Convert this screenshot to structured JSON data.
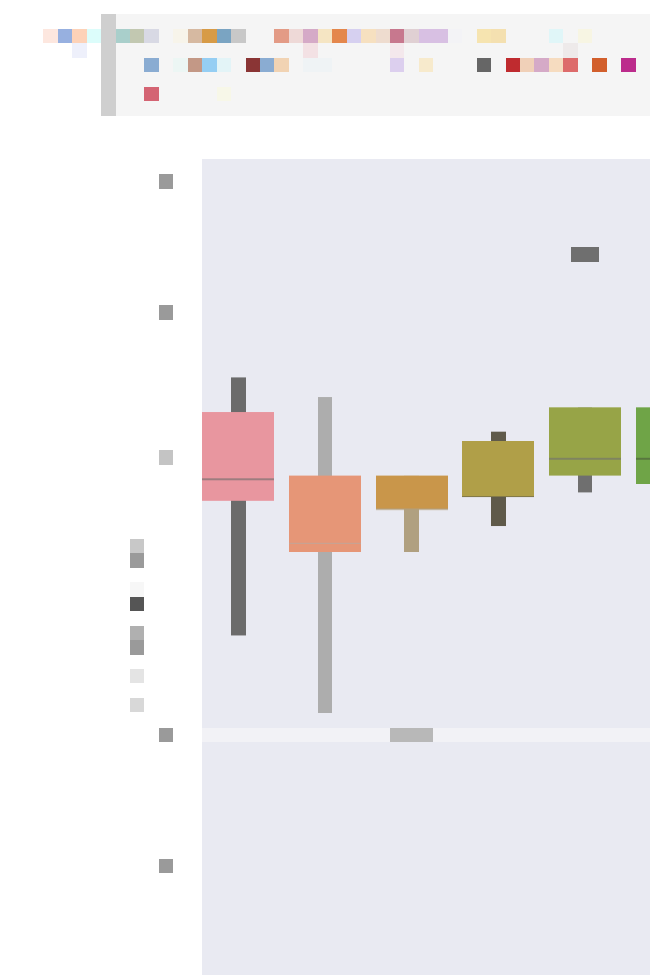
{
  "swatches": {
    "outside": [
      "#fde7df",
      "#97b0e0",
      "#fdd2b8",
      "#dcfdfb",
      "#eef0fb"
    ],
    "row1": [
      "#a9cfcb",
      "#c2c8b1",
      "#d8d9e4",
      "#f7f4ea",
      "#d6b9a1",
      "#d79b47",
      "#7aa4c2",
      "#c8c8c8",
      "#e39b86",
      "#eed9d7",
      "#d5aac7",
      "#f5e5c3",
      "#e4874c",
      "#d6d0f0",
      "#f6e0c0",
      "#eedccf",
      "#c7788e",
      "#e0d0d3",
      "#d8c0e3",
      "#d8c0e3",
      "#f3f3f6",
      "#f6e4b0",
      "#f4e0b0",
      "#e0f6f8",
      "#f7f5e3"
    ],
    "row1b": [
      "#f3e1e4",
      "#f4e8ec",
      "#eeeaea"
    ],
    "row2": [
      "#8aacd2",
      "#ecf6f4",
      "#c39886",
      "#95cef3",
      "#e3f4f7",
      "#8a3535",
      "#8aacd2",
      "#f1d3b3",
      "#eff3f5",
      "#eff3f5",
      "#dccfee",
      "#f7eacc",
      "#666666",
      "#bf2b2f",
      "#f0d0b8",
      "#d5aac7",
      "#f6dcc0",
      "#dd6b6b",
      "#d25f2c",
      "#bc2c8c"
    ],
    "row3": [
      "#d46473",
      "#f7f7e8"
    ]
  },
  "chart_data": {
    "type": "box",
    "title": "",
    "xlabel": "",
    "ylabel": "",
    "ylim": [
      0,
      10
    ],
    "grid": true,
    "background": "#e9eaf2",
    "boxes": [
      {
        "color": "#e8969f",
        "whisker_color": "#6b6b6b",
        "min": 3.92,
        "q1": 5.5,
        "median": 5.75,
        "q3": 6.55,
        "max": 6.95
      },
      {
        "color": "#e69677",
        "whisker_color": "#adadad",
        "min": 3.0,
        "q1": 4.9,
        "median": 5.0,
        "q3": 5.8,
        "max": 6.72
      },
      {
        "color": "#c9964a",
        "whisker_color": "#b0a080",
        "min": 4.9,
        "q1": 5.4,
        "median": 5.4,
        "q3": 5.8,
        "max": 5.8
      },
      {
        "color": "#b09f48",
        "whisker_color": "#5f5a4a",
        "min": 5.2,
        "q1": 5.55,
        "median": 5.55,
        "q3": 6.2,
        "max": 6.32
      },
      {
        "color": "#97a447",
        "whisker_color": "#6f6f6f",
        "min": 5.6,
        "q1": 5.8,
        "median": 6.0,
        "q3": 6.6,
        "max": 6.6
      },
      {
        "color": "#6fa447",
        "whisker_color": "#4a5a3a",
        "min": 5.6,
        "q1": 5.7,
        "median": 6.0,
        "q3": 6.6,
        "max": 6.6
      }
    ],
    "outliers": [
      {
        "box": 4,
        "value": 8.4
      }
    ],
    "legend": {
      "placement": "left",
      "markers": [
        "#c8c8c8",
        "#9a9a9a",
        "#f7f7f7",
        "#555555",
        "#b0b0b0",
        "#9a9a9a",
        "#e4e4e4",
        "#d8d8d8"
      ]
    }
  }
}
